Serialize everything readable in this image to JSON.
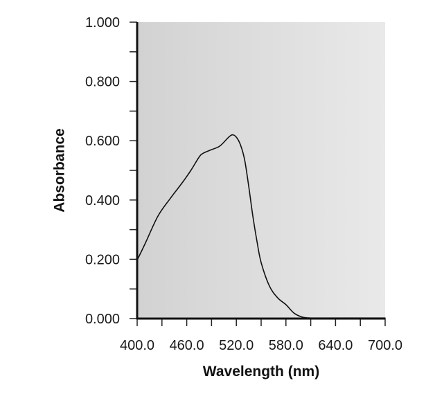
{
  "chart_data": {
    "type": "line",
    "title": "",
    "xlabel": "Wavelength (nm)",
    "ylabel": "Absorbance",
    "xlim": [
      400,
      700
    ],
    "ylim": [
      0,
      1
    ],
    "x_ticks": [
      400,
      430,
      460,
      490,
      520,
      550,
      580,
      610,
      640,
      670,
      700
    ],
    "x_tick_labels": [
      "400.0",
      "460.0",
      "520.0",
      "580.0",
      "640.0",
      "700.0"
    ],
    "x_tick_label_values": [
      400,
      460,
      520,
      580,
      640,
      700
    ],
    "y_ticks": [
      0,
      0.1,
      0.2,
      0.3,
      0.4,
      0.5,
      0.6,
      0.7,
      0.8,
      0.9,
      1.0
    ],
    "y_tick_labels": [
      "0.000",
      "0.200",
      "0.400",
      "0.600",
      "0.800",
      "1.000"
    ],
    "y_tick_label_values": [
      0,
      0.2,
      0.4,
      0.6,
      0.8,
      1.0
    ],
    "grid": false,
    "background": "gradient-gray",
    "line_color": "#111111",
    "series": [
      {
        "x": [
          400,
          410,
          425,
          440,
          455,
          465,
          475,
          480,
          490,
          500,
          510,
          515,
          520,
          525,
          530,
          535,
          540,
          545,
          550,
          560,
          570,
          580,
          590,
          600,
          610,
          620,
          640,
          660,
          680,
          700
        ],
        "y": [
          0.197,
          0.255,
          0.345,
          0.405,
          0.46,
          0.5,
          0.545,
          0.558,
          0.57,
          0.582,
          0.61,
          0.62,
          0.612,
          0.586,
          0.536,
          0.446,
          0.345,
          0.26,
          0.189,
          0.11,
          0.07,
          0.047,
          0.018,
          0.005,
          0.002,
          0.002,
          0.002,
          0.002,
          0.002,
          0.002
        ]
      }
    ]
  }
}
